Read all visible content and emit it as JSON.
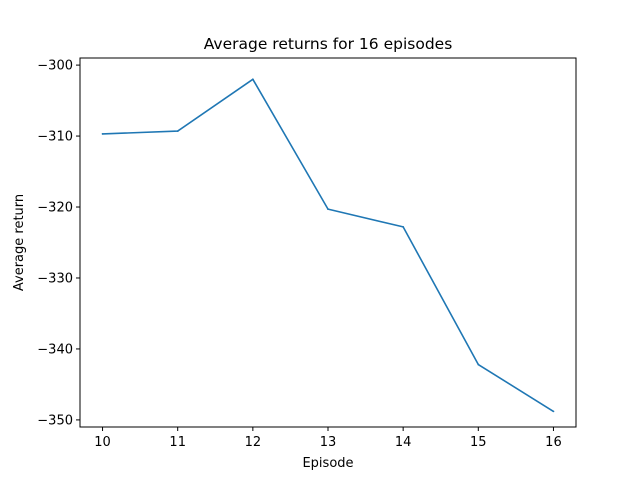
{
  "chart_data": {
    "type": "line",
    "title": "Average returns for 16 episodes",
    "xlabel": "Episode",
    "ylabel": "Average return",
    "xlim": [
      9.7,
      16.3
    ],
    "ylim": [
      -351,
      -299
    ],
    "xticks": [
      10,
      11,
      12,
      13,
      14,
      15,
      16
    ],
    "yticks": [
      -300,
      -310,
      -320,
      -330,
      -340,
      -350
    ],
    "ytick_labels": [
      "−300",
      "−310",
      "−320",
      "−330",
      "−340",
      "−350"
    ],
    "grid": false,
    "series": [
      {
        "color": "#1f77b4",
        "x": [
          10,
          11,
          12,
          13,
          14,
          15,
          16
        ],
        "y": [
          -309.7,
          -309.3,
          -302.0,
          -320.3,
          -322.8,
          -342.2,
          -348.8
        ]
      }
    ]
  }
}
